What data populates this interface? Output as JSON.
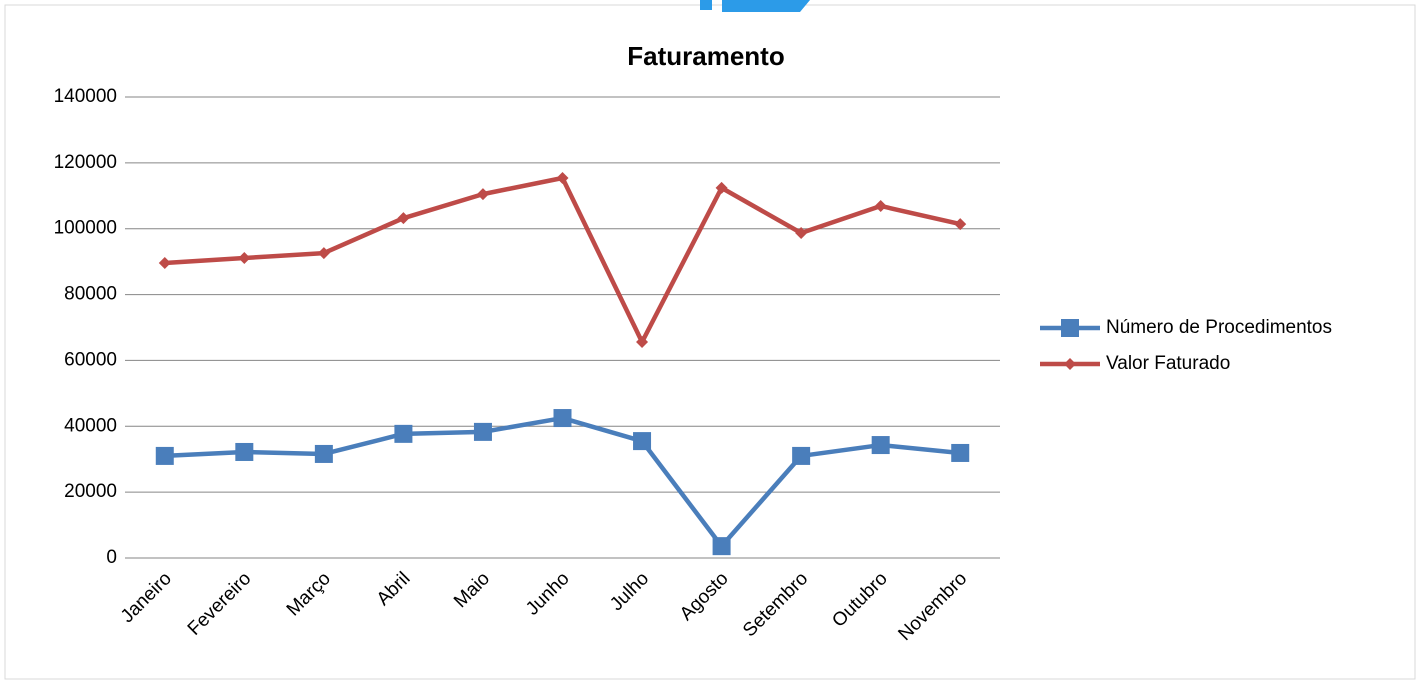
{
  "chart_data": {
    "type": "line",
    "title": "Faturamento",
    "categories": [
      "Janeiro",
      "Fevereiro",
      "Março",
      "Abril",
      "Maio",
      "Junho",
      "Julho",
      "Agosto",
      "Setembro",
      "Outubro",
      "Novembro"
    ],
    "series": [
      {
        "name": "Número de Procedimentos",
        "color": "#4a7ebb",
        "marker": "square",
        "values": [
          31000,
          32200,
          31600,
          37700,
          38300,
          42500,
          35500,
          3600,
          31000,
          34300,
          31900
        ]
      },
      {
        "name": "Valor Faturado",
        "color": "#be4b48",
        "marker": "diamond",
        "values": [
          89600,
          91100,
          92600,
          103200,
          110500,
          115400,
          65600,
          112400,
          98700,
          106900,
          101400
        ]
      }
    ],
    "ylim": [
      0,
      140000
    ],
    "yticks": [
      0,
      20000,
      40000,
      60000,
      80000,
      100000,
      120000,
      140000
    ],
    "grid": true,
    "legend": "right"
  }
}
